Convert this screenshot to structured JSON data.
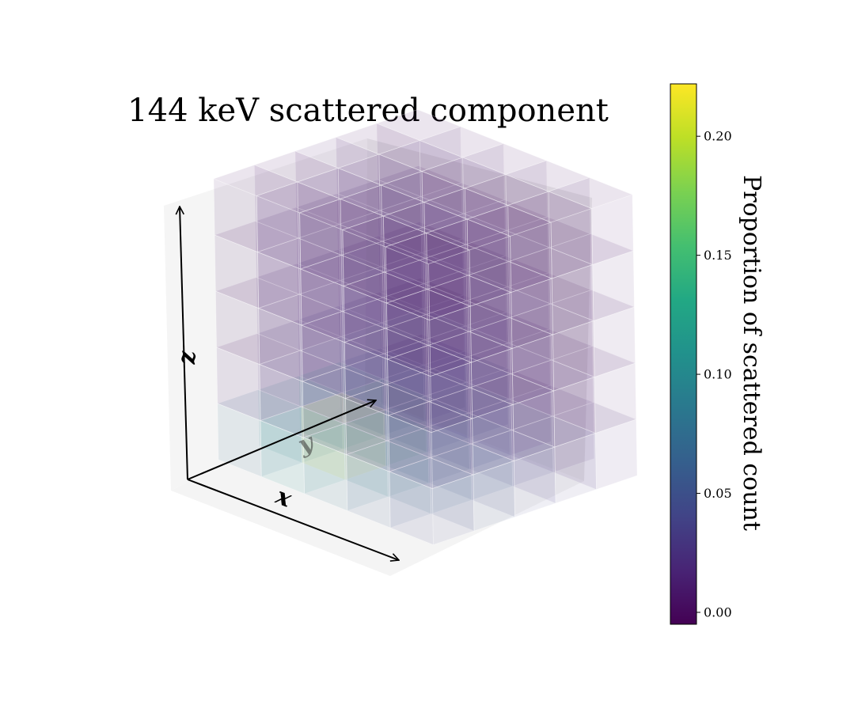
{
  "chart_data": {
    "type": "voxel3d",
    "title": "144 keV scattered component",
    "xlabel": "x",
    "ylabel": "y",
    "zlabel": "z",
    "grid_size": [
      5,
      5,
      5
    ],
    "colormap": "viridis",
    "colorbar": {
      "label": "Proportion of scattered count",
      "range": [
        -0.005,
        0.222
      ],
      "ticks": [
        0.0,
        0.05,
        0.1,
        0.15,
        0.2
      ],
      "tick_labels": [
        "0.00",
        "0.05",
        "0.10",
        "0.15",
        "0.20"
      ],
      "placement": "right"
    },
    "values": [
      [
        [
          0.07,
          0.008,
          0.006,
          0.006,
          0.006
        ],
        [
          0.1,
          0.02,
          0.012,
          0.01,
          0.008
        ],
        [
          0.13,
          0.03,
          0.015,
          0.012,
          0.01
        ],
        [
          0.05,
          0.02,
          0.012,
          0.01,
          0.008
        ],
        [
          0.02,
          0.01,
          0.008,
          0.007,
          0.006
        ]
      ],
      [
        [
          0.11,
          0.02,
          0.012,
          0.01,
          0.008
        ],
        [
          0.222,
          0.04,
          0.02,
          0.015,
          0.012
        ],
        [
          0.15,
          0.05,
          0.025,
          0.018,
          0.014
        ],
        [
          0.06,
          0.03,
          0.018,
          0.014,
          0.011
        ],
        [
          0.03,
          0.015,
          0.011,
          0.009,
          0.007
        ]
      ],
      [
        [
          0.08,
          0.02,
          0.012,
          0.01,
          0.008
        ],
        [
          0.09,
          0.04,
          0.02,
          0.015,
          0.012
        ],
        [
          0.07,
          0.04,
          0.022,
          0.016,
          0.013
        ],
        [
          0.05,
          0.025,
          0.016,
          0.013,
          0.01
        ],
        [
          0.02,
          0.012,
          0.01,
          0.008,
          0.007
        ]
      ],
      [
        [
          0.06,
          0.012,
          0.01,
          0.008,
          0.007
        ],
        [
          0.07,
          0.025,
          0.015,
          0.012,
          0.01
        ],
        [
          0.06,
          0.03,
          0.016,
          0.013,
          0.01
        ],
        [
          0.04,
          0.02,
          0.013,
          0.011,
          0.009
        ],
        [
          0.02,
          0.01,
          0.008,
          0.007,
          0.006
        ]
      ],
      [
        [
          0.04,
          0.008,
          0.007,
          0.006,
          0.005
        ],
        [
          0.05,
          0.015,
          0.01,
          0.008,
          0.007
        ],
        [
          0.04,
          0.015,
          0.01,
          0.008,
          0.007
        ],
        [
          0.03,
          0.012,
          0.009,
          0.008,
          0.007
        ],
        [
          0.015,
          0.008,
          0.007,
          0.006,
          0.005
        ]
      ]
    ]
  }
}
